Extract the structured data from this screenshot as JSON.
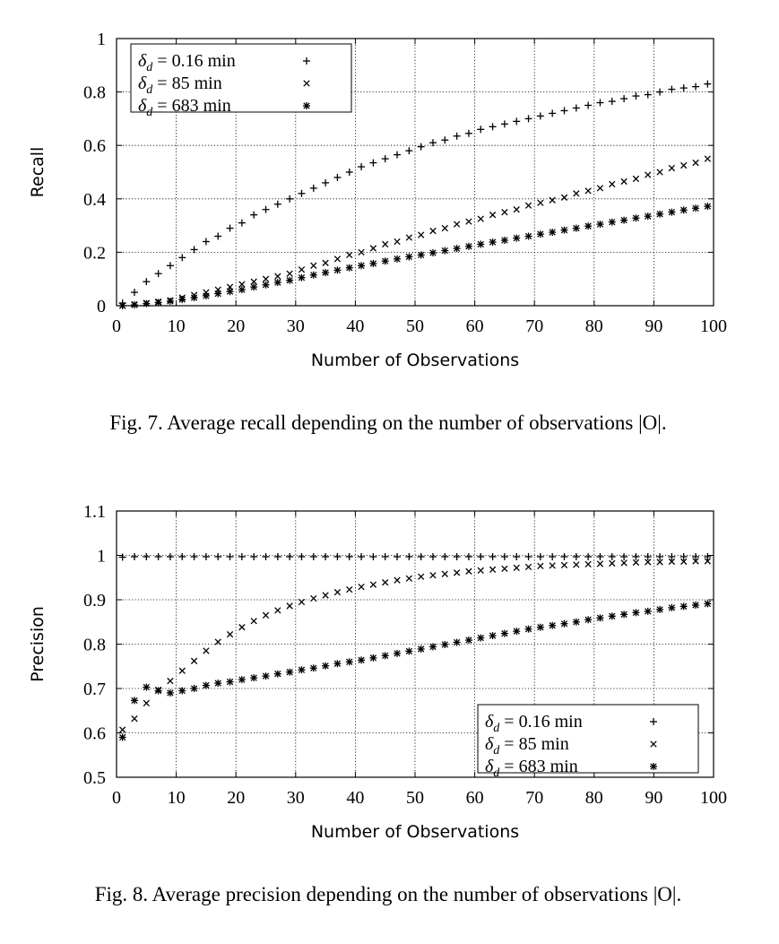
{
  "figures": [
    {
      "caption": "Fig. 7.  Average recall depending on the number of observations |O|."
    },
    {
      "caption": "Fig. 8.  Average precision depending on the number of observations |O|."
    }
  ],
  "chart_data": [
    {
      "type": "scatter",
      "xlabel": "Number of Observations",
      "ylabel": "Recall",
      "xlim": [
        0,
        100
      ],
      "ylim": [
        0,
        1
      ],
      "x_ticks": [
        0,
        10,
        20,
        30,
        40,
        50,
        60,
        70,
        80,
        90,
        100
      ],
      "y_ticks": [
        0,
        0.2,
        0.4,
        0.6,
        0.8,
        1
      ],
      "y_tick_labels": [
        "0",
        "0.2",
        "0.4",
        "0.6",
        "0.8",
        "1"
      ],
      "grid": true,
      "legend_position": "top-left",
      "x": [
        1,
        3,
        5,
        7,
        9,
        11,
        13,
        15,
        17,
        19,
        21,
        23,
        25,
        27,
        29,
        31,
        33,
        35,
        37,
        39,
        41,
        43,
        45,
        47,
        49,
        51,
        53,
        55,
        57,
        59,
        61,
        63,
        65,
        67,
        69,
        71,
        73,
        75,
        77,
        79,
        81,
        83,
        85,
        87,
        89,
        91,
        93,
        95,
        97,
        99
      ],
      "series": [
        {
          "name": "δd = 0.16 min",
          "marker": "plus",
          "values": [
            0.01,
            0.05,
            0.09,
            0.12,
            0.15,
            0.18,
            0.21,
            0.24,
            0.26,
            0.29,
            0.31,
            0.34,
            0.36,
            0.38,
            0.4,
            0.42,
            0.44,
            0.46,
            0.48,
            0.5,
            0.52,
            0.535,
            0.55,
            0.565,
            0.58,
            0.595,
            0.61,
            0.62,
            0.635,
            0.645,
            0.66,
            0.67,
            0.68,
            0.69,
            0.7,
            0.71,
            0.72,
            0.73,
            0.74,
            0.75,
            0.76,
            0.765,
            0.775,
            0.785,
            0.79,
            0.8,
            0.81,
            0.815,
            0.82,
            0.83
          ]
        },
        {
          "name": "δd = 85 min",
          "marker": "cross",
          "values": [
            0.0,
            0.005,
            0.01,
            0.015,
            0.02,
            0.03,
            0.04,
            0.05,
            0.06,
            0.07,
            0.08,
            0.09,
            0.1,
            0.11,
            0.12,
            0.135,
            0.15,
            0.16,
            0.175,
            0.19,
            0.2,
            0.215,
            0.23,
            0.24,
            0.255,
            0.265,
            0.28,
            0.29,
            0.305,
            0.315,
            0.325,
            0.34,
            0.35,
            0.36,
            0.375,
            0.385,
            0.395,
            0.405,
            0.42,
            0.43,
            0.44,
            0.455,
            0.465,
            0.475,
            0.49,
            0.5,
            0.515,
            0.525,
            0.535,
            0.55
          ]
        },
        {
          "name": "δd = 683 min",
          "marker": "asterisk",
          "values": [
            0.0,
            0.003,
            0.008,
            0.012,
            0.017,
            0.023,
            0.03,
            0.037,
            0.045,
            0.053,
            0.06,
            0.07,
            0.078,
            0.087,
            0.095,
            0.105,
            0.115,
            0.124,
            0.133,
            0.142,
            0.15,
            0.158,
            0.167,
            0.175,
            0.183,
            0.19,
            0.198,
            0.206,
            0.214,
            0.222,
            0.23,
            0.238,
            0.245,
            0.253,
            0.26,
            0.268,
            0.275,
            0.283,
            0.29,
            0.298,
            0.305,
            0.313,
            0.32,
            0.328,
            0.335,
            0.343,
            0.35,
            0.358,
            0.365,
            0.372
          ]
        }
      ]
    },
    {
      "type": "scatter",
      "xlabel": "Number of Observations",
      "ylabel": "Precision",
      "xlim": [
        0,
        100
      ],
      "ylim": [
        0.5,
        1.1
      ],
      "x_ticks": [
        0,
        10,
        20,
        30,
        40,
        50,
        60,
        70,
        80,
        90,
        100
      ],
      "y_ticks": [
        0.5,
        0.6,
        0.7,
        0.8,
        0.9,
        1,
        1.1
      ],
      "y_tick_labels": [
        "0.5",
        "0.6",
        "0.7",
        "0.8",
        "0.9",
        "1",
        "1.1"
      ],
      "grid": true,
      "legend_position": "bottom-right",
      "x": [
        1,
        3,
        5,
        7,
        9,
        11,
        13,
        15,
        17,
        19,
        21,
        23,
        25,
        27,
        29,
        31,
        33,
        35,
        37,
        39,
        41,
        43,
        45,
        47,
        49,
        51,
        53,
        55,
        57,
        59,
        61,
        63,
        65,
        67,
        69,
        71,
        73,
        75,
        77,
        79,
        81,
        83,
        85,
        87,
        89,
        91,
        93,
        95,
        97,
        99
      ],
      "series": [
        {
          "name": "δd = 0.16 min",
          "marker": "plus",
          "values": [
            0.996,
            0.997,
            0.997,
            0.997,
            0.997,
            0.997,
            0.997,
            0.997,
            0.997,
            0.997,
            0.997,
            0.997,
            0.997,
            0.997,
            0.997,
            0.997,
            0.997,
            0.997,
            0.997,
            0.997,
            0.997,
            0.997,
            0.997,
            0.997,
            0.997,
            0.997,
            0.997,
            0.997,
            0.997,
            0.997,
            0.997,
            0.997,
            0.997,
            0.997,
            0.997,
            0.997,
            0.997,
            0.997,
            0.997,
            0.997,
            0.997,
            0.997,
            0.997,
            0.997,
            0.997,
            0.997,
            0.997,
            0.997,
            0.997,
            0.997
          ]
        },
        {
          "name": "δd = 85 min",
          "marker": "cross",
          "values": [
            0.607,
            0.632,
            0.667,
            0.697,
            0.717,
            0.74,
            0.762,
            0.785,
            0.805,
            0.822,
            0.838,
            0.852,
            0.865,
            0.876,
            0.886,
            0.895,
            0.903,
            0.91,
            0.917,
            0.923,
            0.929,
            0.934,
            0.939,
            0.944,
            0.948,
            0.952,
            0.955,
            0.958,
            0.961,
            0.964,
            0.966,
            0.968,
            0.97,
            0.972,
            0.974,
            0.976,
            0.977,
            0.978,
            0.979,
            0.98,
            0.981,
            0.982,
            0.983,
            0.984,
            0.985,
            0.985,
            0.986,
            0.986,
            0.987,
            0.987
          ]
        },
        {
          "name": "δd = 683 min",
          "marker": "asterisk",
          "values": [
            0.59,
            0.673,
            0.703,
            0.695,
            0.69,
            0.695,
            0.7,
            0.707,
            0.712,
            0.715,
            0.72,
            0.724,
            0.728,
            0.733,
            0.737,
            0.742,
            0.746,
            0.751,
            0.756,
            0.76,
            0.764,
            0.769,
            0.774,
            0.779,
            0.784,
            0.789,
            0.794,
            0.799,
            0.804,
            0.809,
            0.814,
            0.819,
            0.824,
            0.829,
            0.834,
            0.838,
            0.842,
            0.846,
            0.85,
            0.855,
            0.859,
            0.863,
            0.867,
            0.871,
            0.874,
            0.878,
            0.882,
            0.885,
            0.888,
            0.891
          ]
        }
      ]
    }
  ]
}
